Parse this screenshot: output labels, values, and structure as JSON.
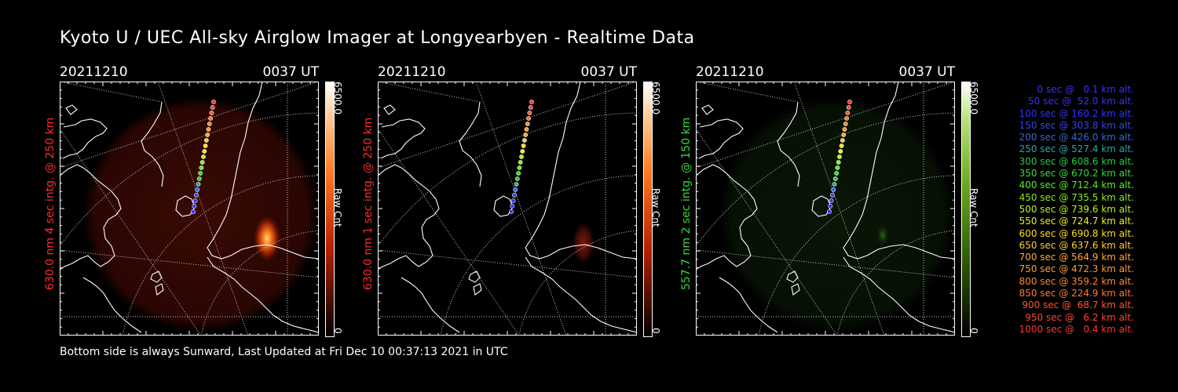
{
  "title": "Kyoto U / UEC All-sky Airglow Imager at Longyearbyen - Realtime Data",
  "footer": "Bottom side is always Sunward, Last Updated at Fri Dec 10 00:37:13 2021 in UTC",
  "panels": [
    {
      "date": "20211210",
      "time": "0037 UT",
      "side_label": "630.0 nm 4 sec intg. @ 250 km",
      "side_color": "#ff2a2a",
      "cbar_max": "6500.0",
      "cbar_min": "0",
      "cbar_unit": "Raw Cnt",
      "cmap": "red",
      "glow": "strong"
    },
    {
      "date": "20211210",
      "time": "0037 UT",
      "side_label": "630.0 nm 1 sec intg. @ 250 km",
      "side_color": "#ff2a2a",
      "cbar_max": "6500.0",
      "cbar_min": "0",
      "cbar_unit": "Raw Cnt",
      "cmap": "red",
      "glow": "weak"
    },
    {
      "date": "20211210",
      "time": "0037 UT",
      "side_label": "557.7 nm 2 sec intg. @ 150 km",
      "side_color": "#33dd33",
      "cbar_max": "6500.0",
      "cbar_min": "0",
      "cbar_unit": "Raw Cnt",
      "cmap": "green",
      "glow": "green"
    }
  ],
  "legend": [
    {
      "text": "0 sec @   0.1 km alt.",
      "color": "#3333ff"
    },
    {
      "text": "50 sec @  52.0 km alt.",
      "color": "#3333ff"
    },
    {
      "text": "100 sec @ 160.2 km alt.",
      "color": "#3333ff"
    },
    {
      "text": "150 sec @ 303.8 km alt.",
      "color": "#3344ee"
    },
    {
      "text": "200 sec @ 426.0 km alt.",
      "color": "#3366dd"
    },
    {
      "text": "250 sec @ 527.4 km alt.",
      "color": "#22aaaa"
    },
    {
      "text": "300 sec @ 608.6 km alt.",
      "color": "#22cc44"
    },
    {
      "text": "350 sec @ 670.2 km alt.",
      "color": "#33dd33"
    },
    {
      "text": "400 sec @ 712.4 km alt.",
      "color": "#55ee22"
    },
    {
      "text": "450 sec @ 735.5 km alt.",
      "color": "#88ee22"
    },
    {
      "text": "500 sec @ 739.6 km alt.",
      "color": "#bbee22"
    },
    {
      "text": "550 sec @ 724.7 km alt.",
      "color": "#eeee22"
    },
    {
      "text": "600 sec @ 690.8 km alt.",
      "color": "#ffdd22"
    },
    {
      "text": "650 sec @ 637.6 km alt.",
      "color": "#ffcc33"
    },
    {
      "text": "700 sec @ 564.9 km alt.",
      "color": "#ffaa33"
    },
    {
      "text": "750 sec @ 472.3 km alt.",
      "color": "#ff9933"
    },
    {
      "text": "800 sec @ 359.2 km alt.",
      "color": "#ff8833"
    },
    {
      "text": "850 sec @ 224.9 km alt.",
      "color": "#ff7733"
    },
    {
      "text": "900 sec @  68.7 km alt.",
      "color": "#ff5533"
    },
    {
      "text": "950 sec @   6.2 km alt.",
      "color": "#ff4433"
    },
    {
      "text": "1000 sec @   0.4 km alt.",
      "color": "#ff3333"
    }
  ]
}
